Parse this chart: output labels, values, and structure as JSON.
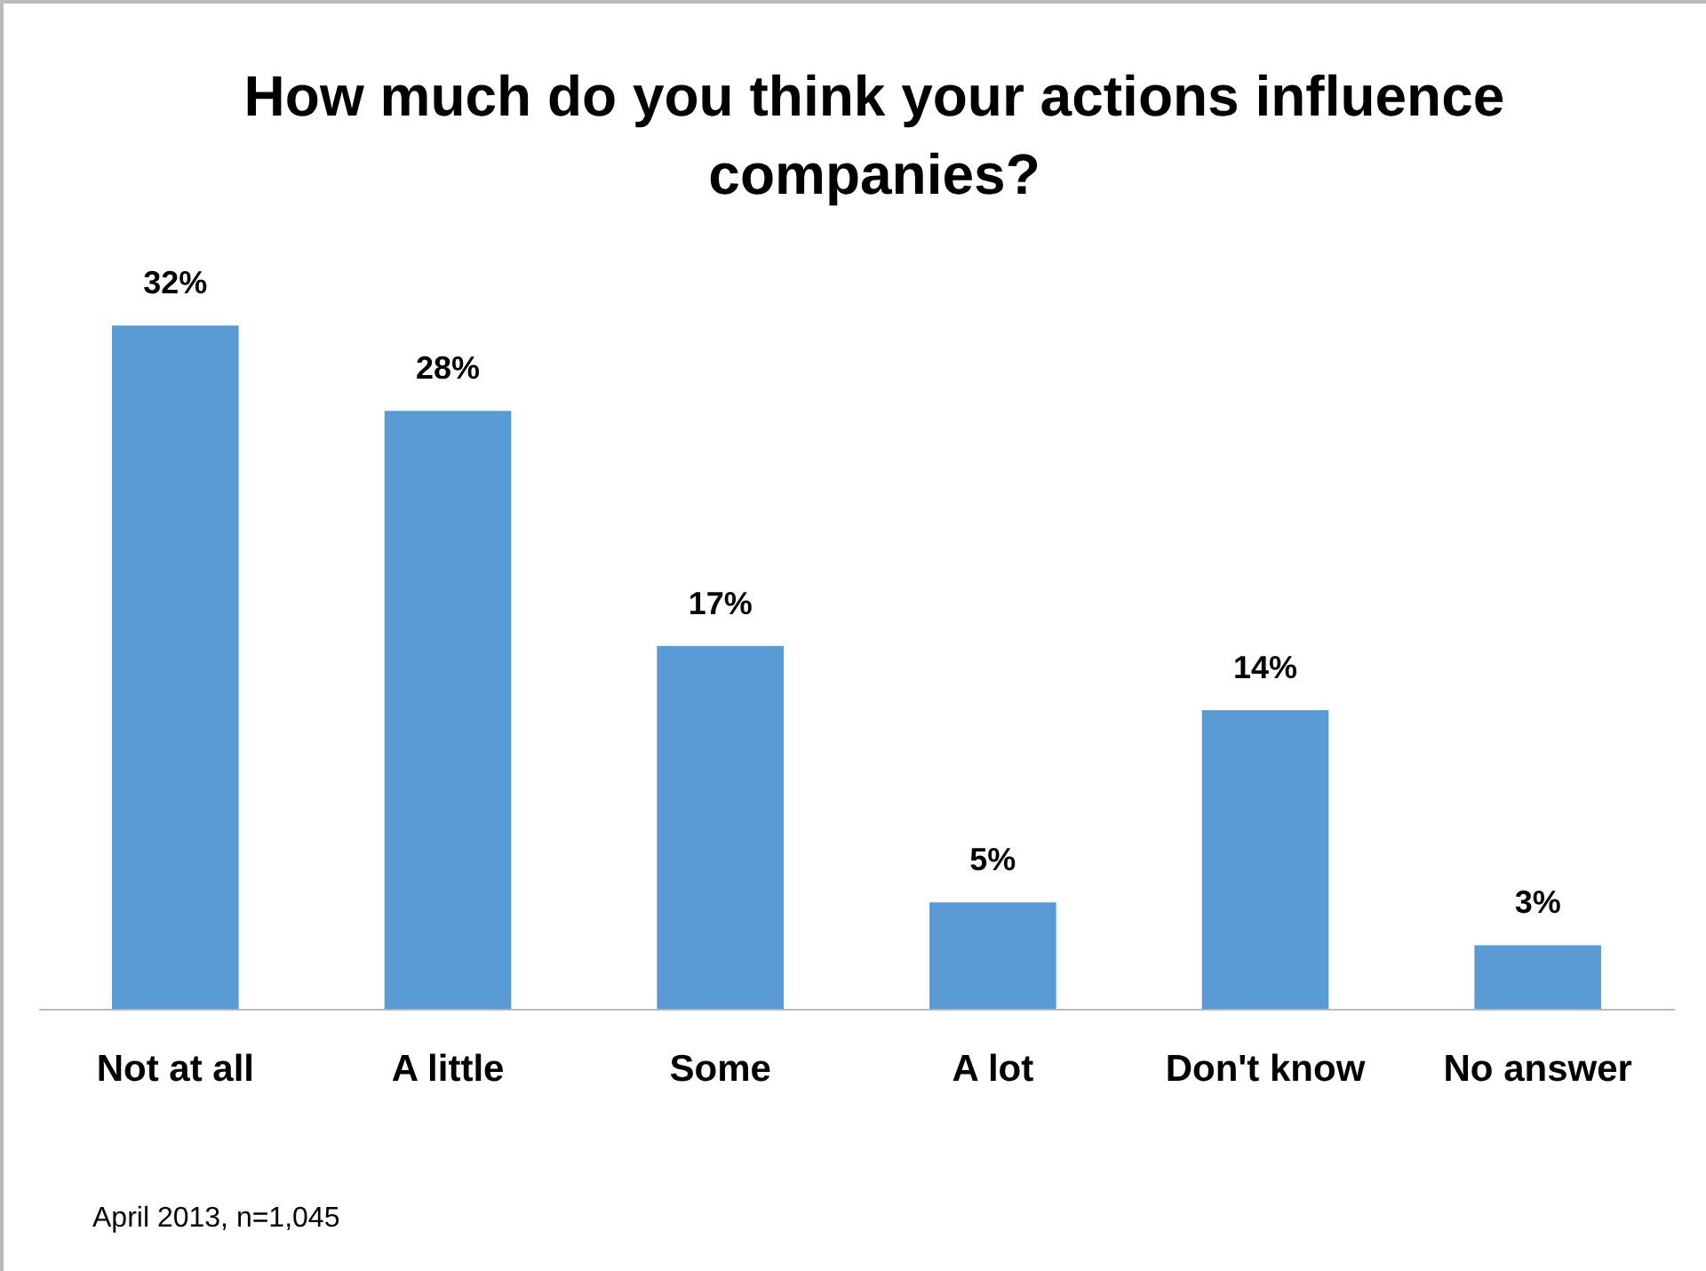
{
  "chart_data": {
    "type": "bar",
    "title": "How much do you think your actions influence companies?",
    "categories": [
      "Not at all",
      "A little",
      "Some",
      "A lot",
      "Don't know",
      "No answer"
    ],
    "values": [
      32,
      28,
      17,
      5,
      14,
      3
    ],
    "value_labels": [
      "32%",
      "28%",
      "17%",
      "5%",
      "14%",
      "3%"
    ],
    "color": "#5b9bd5",
    "grid": false,
    "legend": false,
    "annotations": [
      "April 2013, n=1,045"
    ]
  }
}
